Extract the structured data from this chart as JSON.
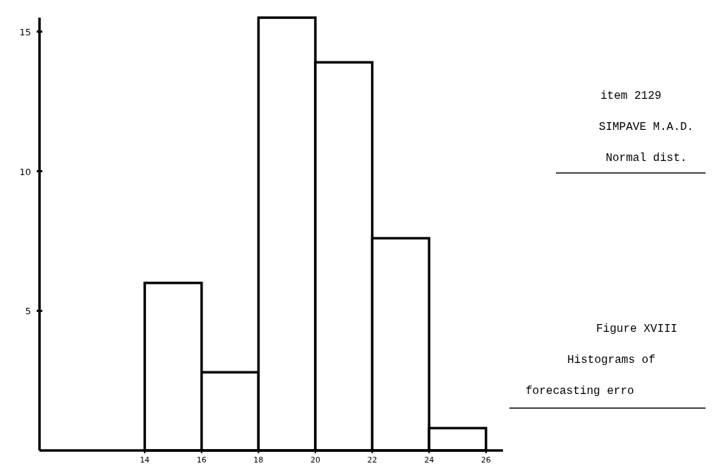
{
  "chart_data": {
    "type": "histogram",
    "title": "Figure XVIII",
    "subtitle": "Histograms of forecasting erro",
    "annotations": [
      "item 2129",
      "SIMPAVE M.A.D.",
      "Normal dist."
    ],
    "bins": [
      14,
      16,
      18,
      20,
      22,
      24,
      26
    ],
    "values": [
      6,
      2.8,
      15.5,
      13.9,
      7.6,
      0.8
    ],
    "color": "#ffffff",
    "xlim": [
      10.3,
      26.6
    ],
    "xticks": [
      14,
      16,
      18,
      20,
      22,
      24,
      26
    ],
    "ylim": [
      0,
      15.5
    ],
    "yticks": [
      5,
      10,
      15
    ]
  }
}
